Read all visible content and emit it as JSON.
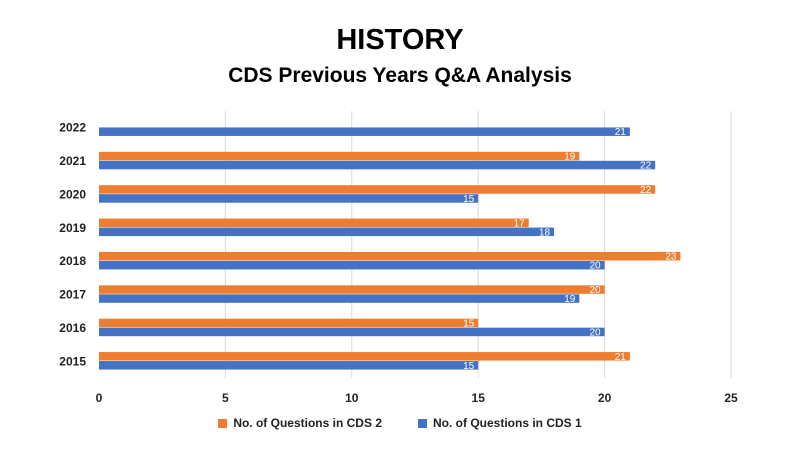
{
  "title": "HISTORY",
  "subtitle": "CDS Previous Years Q&A Analysis",
  "chart_data": {
    "type": "bar",
    "orientation": "horizontal",
    "categories": [
      "2022",
      "2021",
      "2020",
      "2019",
      "2018",
      "2017",
      "2016",
      "2015"
    ],
    "series": [
      {
        "name": "No. of Questions in CDS 2",
        "color": "#ED7D31",
        "values": [
          null,
          19,
          22,
          17,
          23,
          20,
          15,
          21
        ]
      },
      {
        "name": "No. of Questions in CDS 1",
        "color": "#4472C4",
        "values": [
          21,
          22,
          15,
          18,
          20,
          19,
          20,
          15
        ]
      }
    ],
    "xlim": [
      0,
      25
    ],
    "xticks": [
      0,
      5,
      10,
      15,
      20,
      25
    ],
    "grid": true,
    "legend_position": "bottom"
  }
}
